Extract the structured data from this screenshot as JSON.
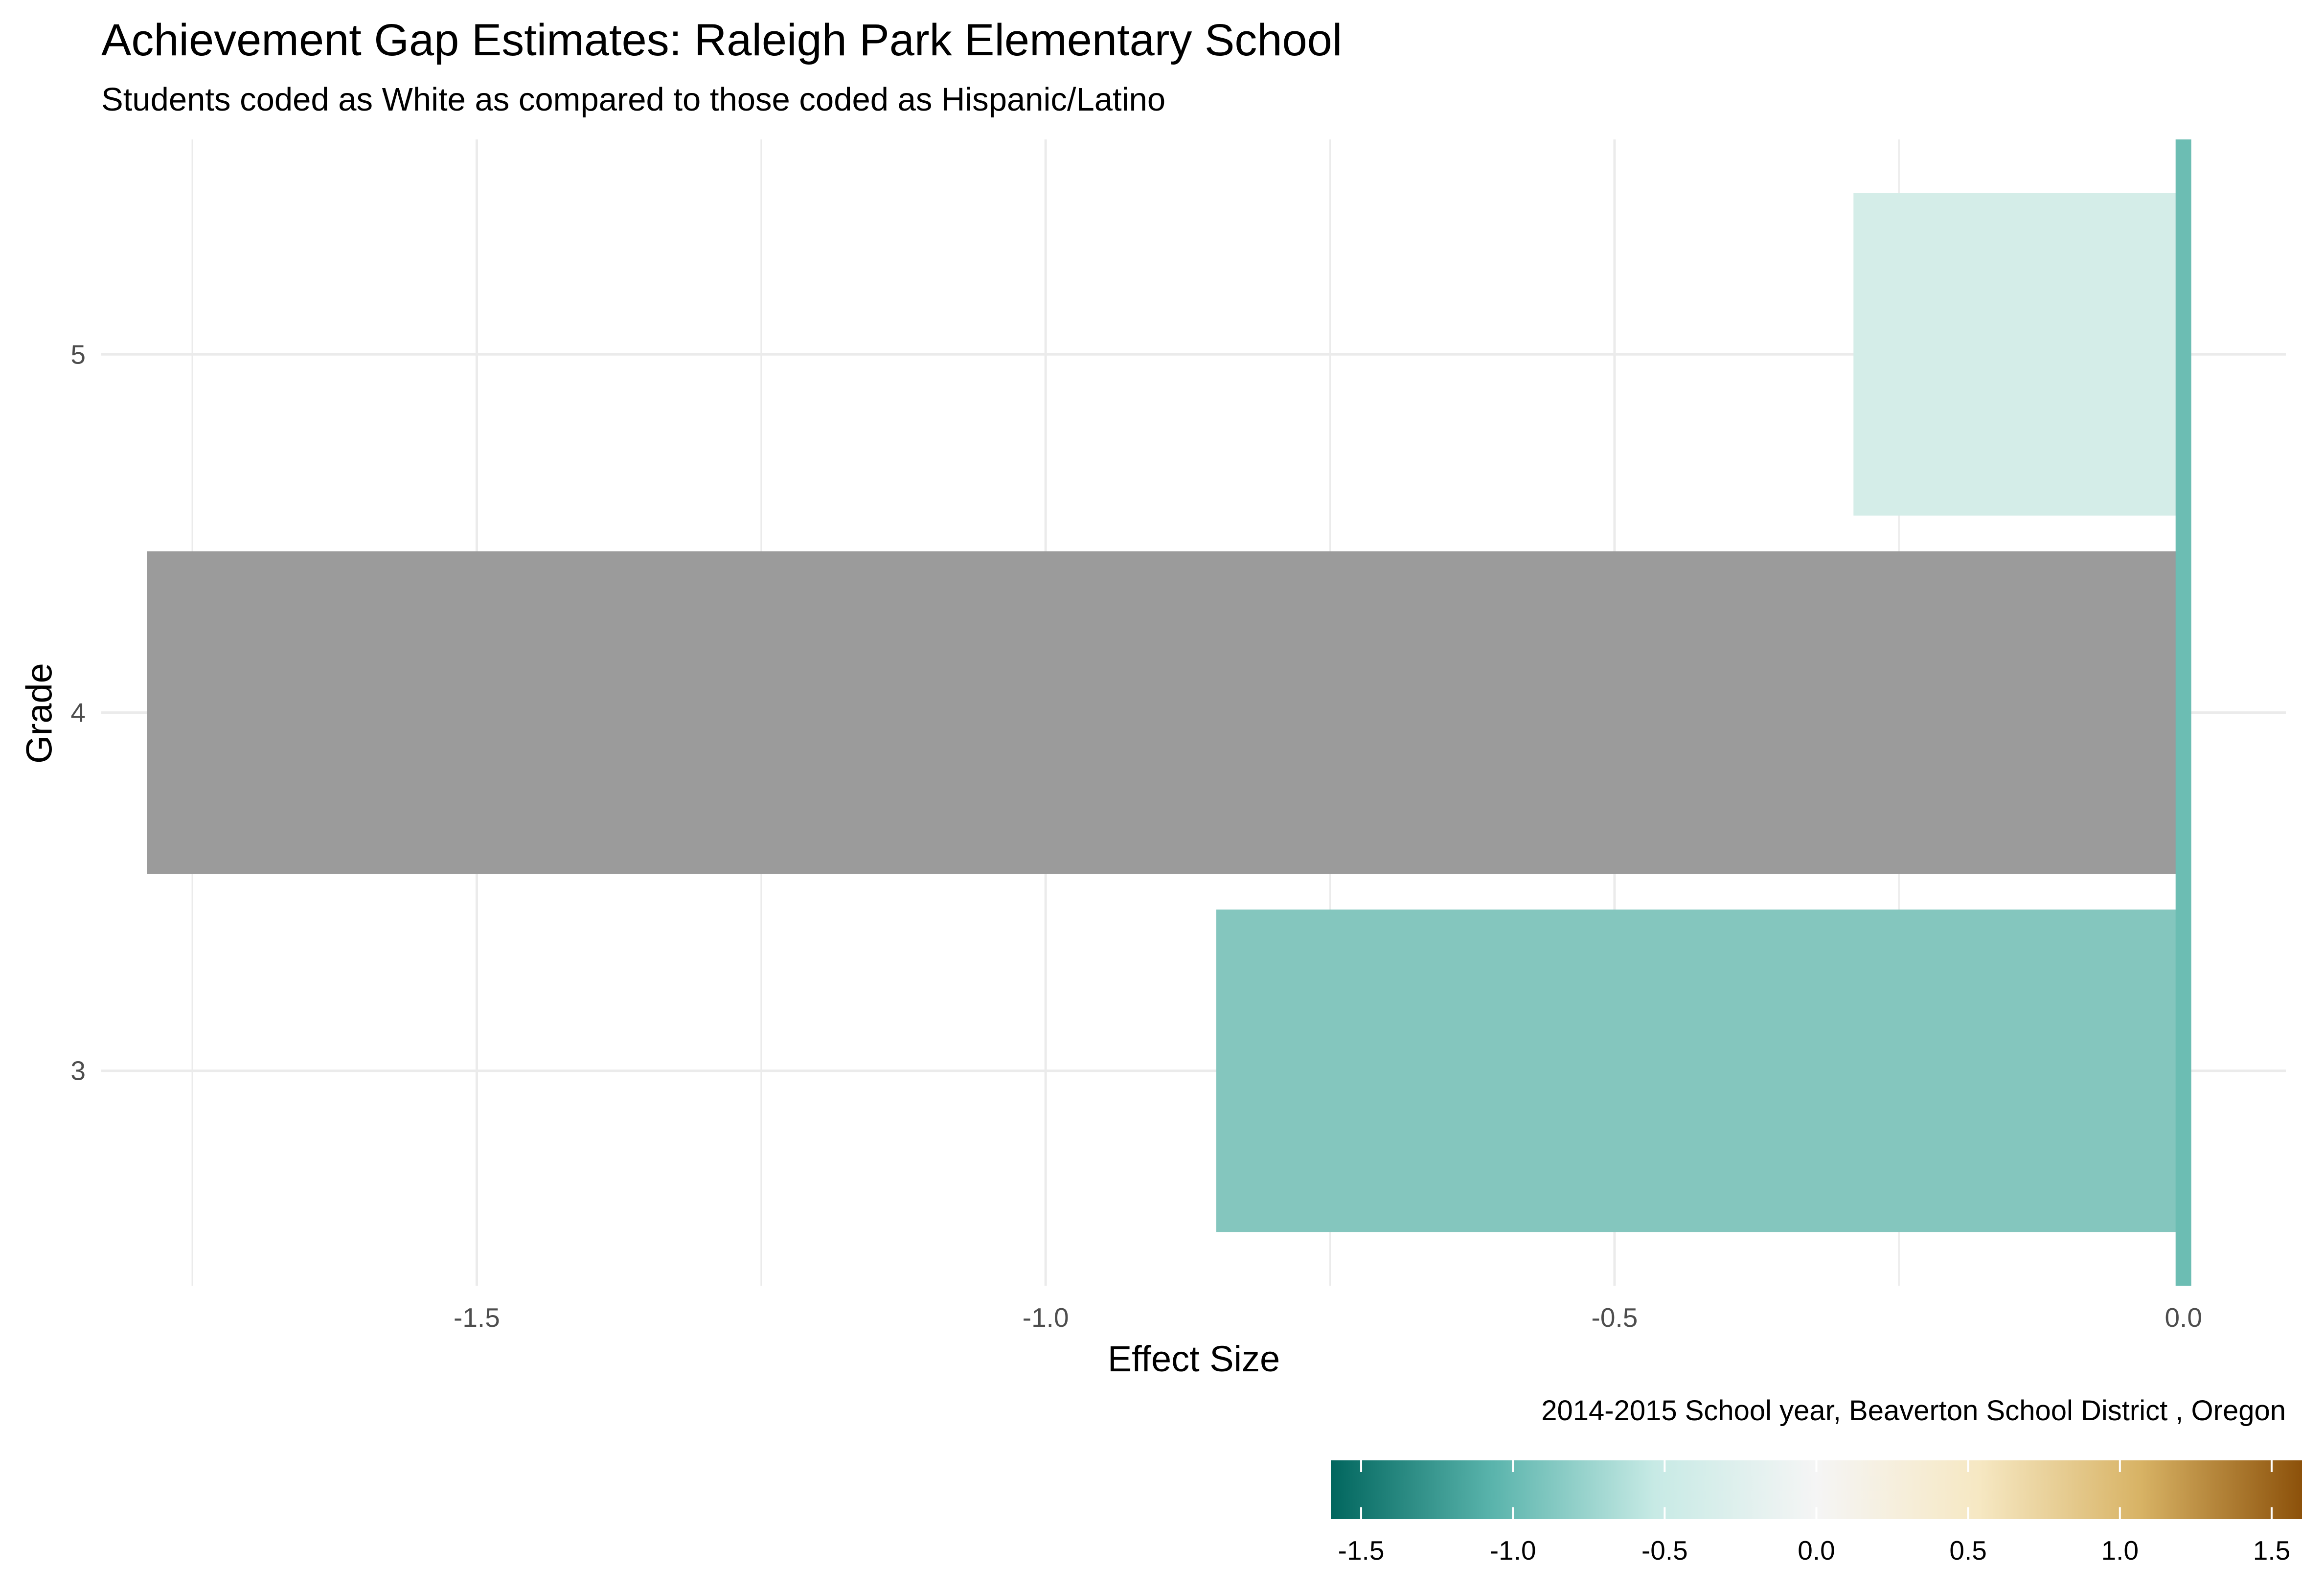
{
  "chart_data": {
    "type": "bar",
    "orientation": "horizontal",
    "title": "Achievement Gap Estimates: Raleigh Park Elementary School",
    "subtitle": "Students coded as White as compared to those coded as Hispanic/Latino",
    "caption": "2014-2015 School year,  Beaverton School District , Oregon",
    "xlabel": "Effect Size",
    "ylabel": "Grade",
    "categories": [
      "3",
      "4",
      "5"
    ],
    "values": [
      -0.85,
      -1.79,
      -0.29
    ],
    "bar_colors": [
      "#84C6BE",
      "#9B9B9B",
      "#D4EDE8"
    ],
    "xlim": [
      -1.83,
      0.09
    ],
    "x_ticks": [
      "-1.5",
      "-1.0",
      "-0.5",
      "0.0"
    ],
    "x_tick_values": [
      -1.5,
      -1.0,
      -0.5,
      0.0
    ],
    "zero_line_color": "#6CBDB3",
    "grid": true,
    "legend": {
      "type": "colorbar",
      "position": "bottom-right",
      "range": [
        -1.6,
        1.6
      ],
      "ticks": [
        "-1.5",
        "-1.0",
        "-0.5",
        "0.0",
        "0.5",
        "1.0",
        "1.5"
      ],
      "tick_values": [
        -1.5,
        -1.0,
        -0.5,
        0.0,
        0.5,
        1.0,
        1.5
      ],
      "colors": [
        "#01665E",
        "#5AB4AC",
        "#C7EAE5",
        "#F5F5F5",
        "#F6E8C3",
        "#D8B365",
        "#8C510A"
      ]
    }
  }
}
